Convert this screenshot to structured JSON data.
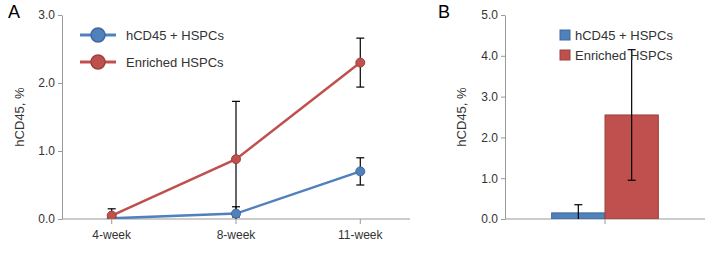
{
  "chart_data": [
    {
      "type": "line",
      "title": "A",
      "categories": [
        "4-week",
        "8-week",
        "11-week"
      ],
      "y_label": "hCD45, %",
      "ylim": [
        0,
        3
      ],
      "yticks": [
        {
          "value": 0,
          "label": "0.0"
        },
        {
          "value": 1,
          "label": "1.0"
        },
        {
          "value": 2,
          "label": "2.0"
        },
        {
          "value": 3,
          "label": "3.0"
        }
      ],
      "legend": "upper left",
      "grid": false,
      "series": [
        {
          "name": "hCD45 + HSPCs",
          "color": "#4f81bd",
          "marker": "circle",
          "values": [
            0.01,
            0.08,
            0.7
          ],
          "errors": [
            0.04,
            0.1,
            0.2
          ]
        },
        {
          "name": "Enriched HSPCs",
          "color": "#c0504d",
          "marker": "circle",
          "values": [
            0.05,
            0.88,
            2.3
          ],
          "errors": [
            0.1,
            0.85,
            0.36
          ]
        }
      ]
    },
    {
      "type": "bar",
      "title": "B",
      "categories": [
        null
      ],
      "y_label": "hCD45, %",
      "ylim": [
        0,
        5
      ],
      "yticks": [
        {
          "value": 0,
          "label": "0.0"
        },
        {
          "value": 1,
          "label": "1.0"
        },
        {
          "value": 2,
          "label": "2.0"
        },
        {
          "value": 3,
          "label": "3.0"
        },
        {
          "value": 4,
          "label": "4.0"
        },
        {
          "value": 5,
          "label": "5.0"
        }
      ],
      "legend": "upper left",
      "grid": false,
      "series": [
        {
          "name": "hCD45 + HSPCs",
          "color": "#4f81bd",
          "values": [
            0.15
          ],
          "errors": [
            0.2
          ]
        },
        {
          "name": "Enriched HSPCs",
          "color": "#c0504d",
          "values": [
            2.55
          ],
          "errors": [
            1.6
          ]
        }
      ]
    }
  ]
}
